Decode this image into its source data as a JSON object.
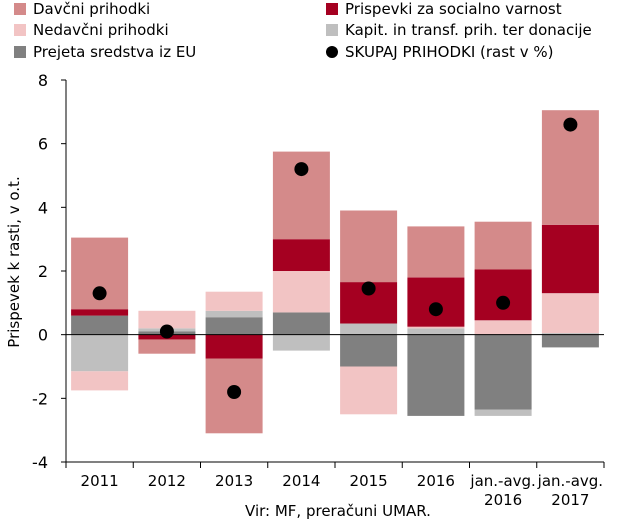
{
  "chart_data": {
    "type": "bar",
    "stacked": true,
    "ylabel": "Prispevek k rasti, v o.t.",
    "ylim": [
      -4,
      8
    ],
    "yticks": [
      -4,
      -2,
      0,
      2,
      4,
      6,
      8
    ],
    "grid": false,
    "legend_position": "top",
    "categories": [
      {
        "line1": "2011",
        "line2": ""
      },
      {
        "line1": "2012",
        "line2": ""
      },
      {
        "line1": "2013",
        "line2": ""
      },
      {
        "line1": "2014",
        "line2": ""
      },
      {
        "line1": "2015",
        "line2": ""
      },
      {
        "line1": "2016",
        "line2": ""
      },
      {
        "line1": "jan.-avg.",
        "line2": "2016"
      },
      {
        "line1": "jan.-avg.",
        "line2": "2017"
      }
    ],
    "series": [
      {
        "name": "Prejeta sredstva iz EU",
        "color": "#808080",
        "values": [
          0.6,
          0.1,
          0.55,
          0.7,
          -1.0,
          -2.55,
          -2.35,
          -0.4
        ]
      },
      {
        "name": "Kapit. in transf. prih. ter donacije",
        "color": "#bfbfbf",
        "values": [
          -1.15,
          0.1,
          0.2,
          -0.5,
          0.35,
          0.2,
          -0.2,
          0.05
        ]
      },
      {
        "name": "Nedavčni prihodki",
        "color": "#f2c4c4",
        "values": [
          -0.6,
          0.55,
          0.6,
          1.3,
          -1.5,
          0.05,
          0.45,
          1.25
        ]
      },
      {
        "name": "Prispevki za socialno varnost",
        "color": "#a50021",
        "values": [
          0.2,
          -0.15,
          -0.75,
          1.0,
          1.3,
          1.55,
          1.6,
          2.15
        ]
      },
      {
        "name": "Davčni prihodki",
        "color": "#d48a8a",
        "values": [
          2.25,
          -0.45,
          -2.35,
          2.75,
          2.25,
          1.6,
          1.5,
          3.6
        ]
      }
    ],
    "points": {
      "name": "SKUPAJ PRIHODKI (rast v %)",
      "color": "#000000",
      "values": [
        1.3,
        0.1,
        -1.8,
        5.2,
        1.45,
        0.8,
        1.0,
        6.6
      ]
    }
  },
  "legend": {
    "items": [
      {
        "label": "Davčni prihodki",
        "color": "#d48a8a",
        "marker": "square"
      },
      {
        "label": "Prispevki za socialno varnost",
        "color": "#a50021",
        "marker": "square"
      },
      {
        "label": "Nedavčni prihodki",
        "color": "#f2c4c4",
        "marker": "square"
      },
      {
        "label": "Kapit. in transf. prih. ter donacije",
        "color": "#bfbfbf",
        "marker": "square"
      },
      {
        "label": "Prejeta sredstva iz EU",
        "color": "#808080",
        "marker": "square"
      },
      {
        "label": "SKUPAJ PRIHODKI (rast v %)",
        "color": "#000000",
        "marker": "circle"
      }
    ]
  },
  "source": "Vir: MF, preračuni UMAR."
}
